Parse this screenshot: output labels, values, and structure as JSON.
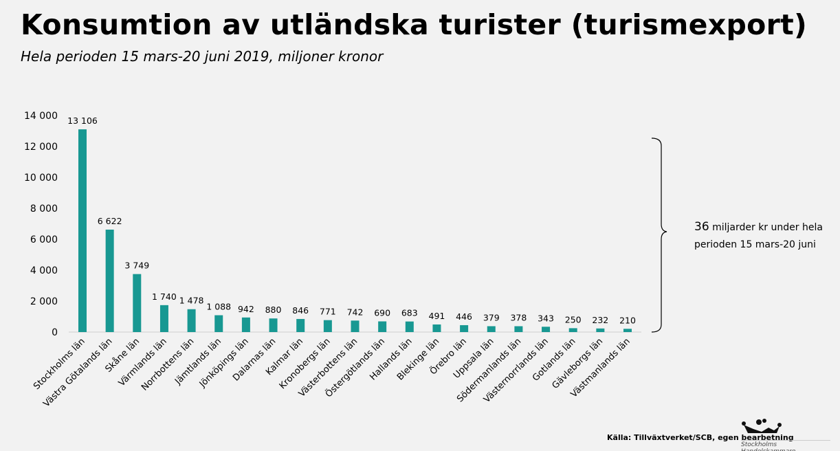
{
  "title": "Konsumtion av utländska turister (turismexport)",
  "subtitle": "Hela perioden 15 mars-20 juni 2019, miljoner kronor",
  "annotation": {
    "amount": "36",
    "text_line1": "miljarder kr under hela",
    "text_line2": "perioden 15 mars-20 juni"
  },
  "source": "Källa: Tillväxtverket/SCB, egen bearbetning",
  "logo_text": "Stockholms Handelskammare",
  "chart_data": {
    "type": "bar",
    "title": "Konsumtion av utländska turister (turismexport)",
    "subtitle": "Hela perioden 15 mars-20 juni 2019, miljoner kronor",
    "categories": [
      "Stockholms län",
      "Västra Götalands län",
      "Skåne län",
      "Värmlands län",
      "Norrbottens län",
      "Jämtlands län",
      "Jönköpings län",
      "Dalarnas län",
      "Kalmar län",
      "Kronobergs län",
      "Västerbottens län",
      "Östergötlands län",
      "Hallands län",
      "Blekinge län",
      "Örebro län",
      "Uppsala län",
      "Södermanlands län",
      "Västernorrlands län",
      "Gotlands län",
      "Gävleborgs län",
      "Västmanlands län"
    ],
    "values": [
      13106,
      6622,
      3749,
      1740,
      1478,
      1088,
      942,
      880,
      846,
      771,
      742,
      690,
      683,
      491,
      446,
      379,
      378,
      343,
      250,
      232,
      210
    ],
    "data_labels": [
      "13 106",
      "6 622",
      "3 749",
      "1 740",
      "1 478",
      "1 088",
      "942",
      "880",
      "846",
      "771",
      "742",
      "690",
      "683",
      "491",
      "446",
      "379",
      "378",
      "343",
      "250",
      "232",
      "210"
    ],
    "ylim": [
      0,
      14000
    ],
    "yticks": [
      0,
      2000,
      4000,
      6000,
      8000,
      10000,
      12000,
      14000
    ],
    "ytick_labels": [
      "0",
      "2 000",
      "4 000",
      "6 000",
      "8 000",
      "10 000",
      "12 000",
      "14 000"
    ],
    "grid": false,
    "bar_color": "#189892"
  }
}
